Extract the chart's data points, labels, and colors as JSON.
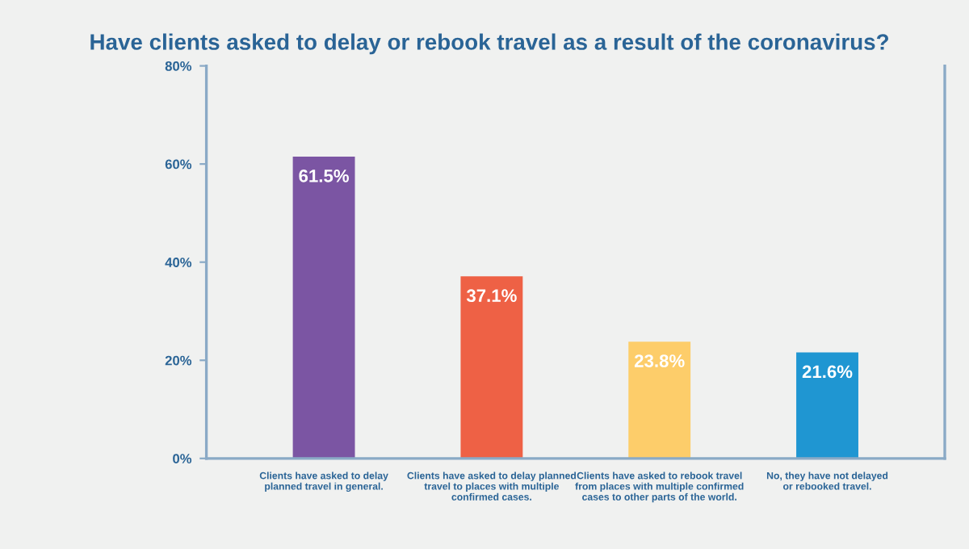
{
  "chart_data": {
    "type": "bar",
    "title": "Have clients asked to delay or rebook travel as a result of the coronavirus?",
    "categories": [
      "Clients have asked to delay\nplanned travel in general.",
      "Clients have asked to delay planned\ntravel to places with multiple\nconfirmed cases.",
      "Clients have asked to rebook travel\nfrom places with multiple confirmed\ncases to other parts of the world.",
      "No, they have not delayed\nor rebooked travel."
    ],
    "values": [
      61.5,
      37.1,
      23.8,
      21.6
    ],
    "value_labels": [
      "61.5%",
      "37.1%",
      "23.8%",
      "21.6%"
    ],
    "colors": [
      "#7b55a3",
      "#ee6145",
      "#fdcd6a",
      "#1f96d2"
    ],
    "ylim": [
      0,
      80
    ],
    "yticks": [
      {
        "value": 0,
        "label": "0%"
      },
      {
        "value": 20,
        "label": "20%"
      },
      {
        "value": 40,
        "label": "40%"
      },
      {
        "value": 60,
        "label": "60%"
      },
      {
        "value": 80,
        "label": "80%"
      }
    ],
    "grid": false,
    "legend": false
  }
}
